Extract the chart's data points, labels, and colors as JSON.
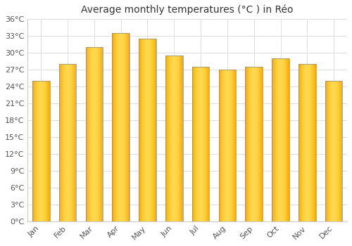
{
  "title": "Average monthly temperatures (°C ) in Réo",
  "months": [
    "Jan",
    "Feb",
    "Mar",
    "Apr",
    "May",
    "Jun",
    "Jul",
    "Aug",
    "Sep",
    "Oct",
    "Nov",
    "Dec"
  ],
  "values": [
    25,
    28,
    31,
    33.5,
    32.5,
    29.5,
    27.5,
    27,
    27.5,
    29,
    28,
    25
  ],
  "ylim": [
    0,
    36
  ],
  "yticks": [
    0,
    3,
    6,
    9,
    12,
    15,
    18,
    21,
    24,
    27,
    30,
    33,
    36
  ],
  "ytick_labels": [
    "0°C",
    "3°C",
    "6°C",
    "9°C",
    "12°C",
    "15°C",
    "18°C",
    "21°C",
    "24°C",
    "27°C",
    "30°C",
    "33°C",
    "36°C"
  ],
  "background_color": "#ffffff",
  "grid_color": "#dddddd",
  "title_fontsize": 10,
  "tick_fontsize": 8,
  "bar_width": 0.65,
  "bar_color_center": "#FFD84D",
  "bar_color_edge": "#F5A800",
  "bar_outline_color": "#888888"
}
